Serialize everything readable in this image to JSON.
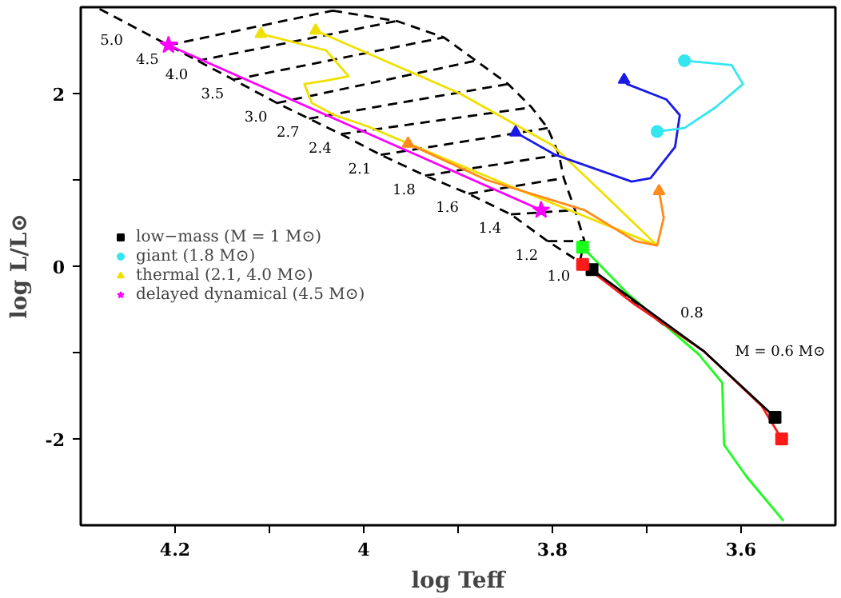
{
  "chart_data": {
    "type": "line",
    "xlabel": "log Teff",
    "ylabel": "log L/L⊙",
    "xlim": [
      4.3,
      3.5
    ],
    "ylim": [
      -3,
      3
    ],
    "xticks": [
      4.2,
      4,
      3.8,
      3.6,
      {
        "value": 4.1,
        "label": null
      },
      {
        "value": 3.9,
        "label": null
      },
      {
        "value": 3.7,
        "label": null
      }
    ],
    "yticks": [
      -2,
      0,
      2,
      {
        "value": -1,
        "label": null
      },
      {
        "value": 1,
        "label": null
      }
    ],
    "grid": false,
    "legend": "left",
    "marker": "none",
    "line_style": "solid",
    "series": [
      {
        "color": "#000000",
        "line_style": "dashed",
        "x": [
          4.28,
          4.207,
          4.176,
          4.138,
          4.092,
          4.058,
          4.024,
          3.982,
          3.935,
          3.889,
          3.844,
          3.805,
          3.771,
          3.678,
          null,
          4.033,
          3.965,
          3.915,
          3.881,
          3.847,
          3.822,
          3.805,
          3.793,
          3.788,
          3.776,
          3.766,
          3.771,
          null,
          4.207,
          4.033,
          null,
          4.176,
          3.965,
          null,
          4.138,
          3.915,
          null,
          4.092,
          3.881,
          null,
          4.058,
          3.847,
          null,
          4.024,
          3.822,
          null,
          3.982,
          3.805,
          null,
          3.935,
          3.793,
          null,
          3.889,
          3.788,
          null,
          3.844,
          3.776,
          null,
          3.805,
          3.766
        ],
        "values": [
          2.98,
          2.56,
          2.38,
          2.16,
          1.89,
          1.71,
          1.53,
          1.29,
          1.05,
          0.84,
          0.6,
          0.29,
          0.05,
          -0.71,
          null,
          2.96,
          2.84,
          2.65,
          2.38,
          2.11,
          1.84,
          1.6,
          1.29,
          1.02,
          0.65,
          0.29,
          0.05,
          null,
          2.56,
          2.96,
          null,
          2.38,
          2.84,
          null,
          2.16,
          2.65,
          null,
          1.89,
          2.38,
          null,
          1.71,
          2.11,
          null,
          1.53,
          1.84,
          null,
          1.29,
          1.6,
          null,
          1.05,
          1.29,
          null,
          0.84,
          1.02,
          null,
          0.6,
          0.65,
          null,
          0.29,
          0.29
        ]
      },
      {
        "color": "#ff00ff",
        "x": [
          4.207,
          3.812
        ],
        "values": [
          2.56,
          0.65
        ]
      },
      {
        "color": "#f0e000",
        "x": [
          4.109,
          4.04,
          4.016,
          4.04,
          4.063,
          4.055,
          4.031,
          3.996,
          3.85,
          3.689
        ],
        "values": [
          2.69,
          2.5,
          2.2,
          2.15,
          2.11,
          1.89,
          1.75,
          1.62,
          0.95,
          0.24
        ]
      },
      {
        "color": "#f0e000",
        "x": [
          4.051,
          3.898,
          3.8,
          3.746,
          3.689
        ],
        "values": [
          2.73,
          2.0,
          1.4,
          0.84,
          0.24
        ]
      },
      {
        "color": "#ff8c1a",
        "x": [
          3.953,
          3.87,
          3.766,
          3.712,
          3.689,
          3.682,
          3.687
        ],
        "values": [
          1.42,
          1.0,
          0.65,
          0.29,
          0.24,
          0.56,
          0.87
        ]
      },
      {
        "color": "#1a1ae6",
        "x": [
          3.839,
          3.797,
          3.716,
          3.696,
          3.67,
          3.665,
          3.679,
          3.721,
          3.724
        ],
        "values": [
          1.55,
          1.29,
          0.98,
          1.02,
          1.38,
          1.75,
          1.93,
          2.11,
          2.16
        ]
      },
      {
        "color": "#33e6f0",
        "x": [
          3.66,
          3.61,
          3.598,
          3.627,
          3.66,
          3.689
        ],
        "values": [
          2.38,
          2.33,
          2.11,
          1.84,
          1.6,
          1.56
        ]
      },
      {
        "color": "#1aff1a",
        "x": [
          3.768,
          3.721,
          3.678,
          3.645,
          3.62,
          3.618,
          3.594,
          3.555
        ],
        "values": [
          0.22,
          -0.31,
          -0.71,
          -1.02,
          -1.35,
          -2.07,
          -2.44,
          -2.95
        ]
      },
      {
        "color": "#ff1a1a",
        "x": [
          3.768,
          3.713,
          3.64,
          3.578,
          3.557
        ],
        "values": [
          0.02,
          -0.44,
          -0.98,
          -1.62,
          -2.0
        ]
      },
      {
        "color": "#000000",
        "x": [
          3.758,
          3.713,
          3.64,
          3.564
        ],
        "values": [
          -0.04,
          -0.4,
          -0.98,
          -1.75
        ]
      },
      {
        "type": "scatter",
        "name": "low−mass (M = 1 M⊙)",
        "marker": "square",
        "x": [
          3.758,
          3.768,
          3.768,
          3.564,
          3.557
        ],
        "values": [
          -0.04,
          0.22,
          0.02,
          -1.75,
          -2.0
        ],
        "colors": [
          "#000000",
          "#1aff1a",
          "#ff1a1a",
          "#000000",
          "#ff1a1a"
        ]
      },
      {
        "type": "scatter",
        "name": "giant (1.8 M⊙)",
        "marker": "circle",
        "x": [
          3.66,
          3.689
        ],
        "values": [
          2.38,
          1.56
        ],
        "colors": [
          "#33e6f0",
          "#33e6f0"
        ]
      },
      {
        "type": "scatter",
        "name": "thermal (2.1, 4.0 M⊙)",
        "marker": "triangle",
        "x": [
          4.109,
          4.051,
          3.953,
          3.687,
          3.839,
          3.724
        ],
        "values": [
          2.69,
          2.73,
          1.42,
          0.87,
          1.55,
          2.16
        ],
        "colors": [
          "#f0e000",
          "#f0e000",
          "#ff8c1a",
          "#ff8c1a",
          "#1a1ae6",
          "#1a1ae6"
        ]
      },
      {
        "type": "scatter",
        "name": "delayed dynamical (4.5 M⊙)",
        "marker": "star",
        "x": [
          4.207,
          3.812
        ],
        "values": [
          2.56,
          0.65
        ],
        "colors": [
          "#ff00ff",
          "#ff00ff"
        ]
      }
    ],
    "annotations": [
      {
        "text": "5.0",
        "x": 4.245,
        "y": 2.78
      },
      {
        "text": "4.5",
        "x": 4.207,
        "y": 2.56
      },
      {
        "text": "4.0",
        "x": 4.176,
        "y": 2.38
      },
      {
        "text": "3.5",
        "x": 4.138,
        "y": 2.16
      },
      {
        "text": "3.0",
        "x": 4.092,
        "y": 1.89
      },
      {
        "text": "2.7",
        "x": 4.058,
        "y": 1.71
      },
      {
        "text": "2.4",
        "x": 4.024,
        "y": 1.53
      },
      {
        "text": "2.1",
        "x": 3.982,
        "y": 1.29
      },
      {
        "text": "1.8",
        "x": 3.935,
        "y": 1.05
      },
      {
        "text": "1.6",
        "x": 3.889,
        "y": 0.84
      },
      {
        "text": "1.4",
        "x": 3.844,
        "y": 0.6
      },
      {
        "text": "1.2",
        "x": 3.805,
        "y": 0.29
      },
      {
        "text": "1.0",
        "x": 3.771,
        "y": 0.05
      },
      {
        "text": "0.8",
        "x": 3.678,
        "y": -0.71
      },
      {
        "text": "M = 0.6 M⊙",
        "x": 3.62,
        "y": -1.183
      }
    ]
  }
}
